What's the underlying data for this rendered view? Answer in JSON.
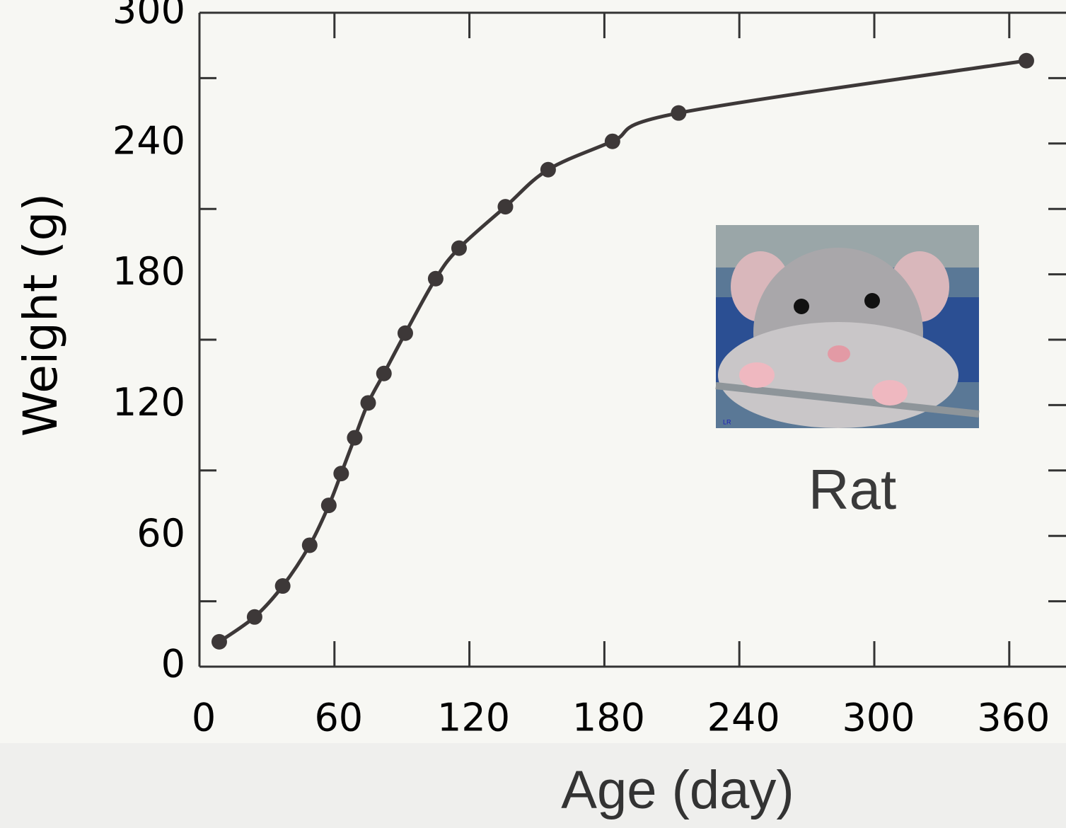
{
  "chart_data": {
    "type": "line",
    "x_label": "Age (day)",
    "y_label": "Weight (g)",
    "annotation": "Rat",
    "photo_credit": "LR",
    "x": [
      8.8,
      24.5,
      37,
      49,
      57.5,
      63,
      69,
      75,
      82,
      91.5,
      105,
      115.4,
      136,
      155,
      183.6,
      213,
      367.6
    ],
    "series": [
      {
        "color": "#3d3838",
        "values": [
          11.4,
          22.8,
          37,
          55.7,
          74,
          88.6,
          105,
          121,
          134.5,
          153,
          178,
          192,
          211,
          228,
          241,
          254,
          278
        ]
      }
    ],
    "xlim": [
      0,
      385
    ],
    "xticks": [
      0,
      60,
      120,
      180,
      240,
      300,
      360
    ],
    "ylim": [
      0,
      300
    ],
    "yticks": [
      0,
      60,
      120,
      180,
      240,
      300
    ],
    "yminorticks": [
      30,
      90,
      150,
      210,
      270
    ],
    "markers": true
  }
}
